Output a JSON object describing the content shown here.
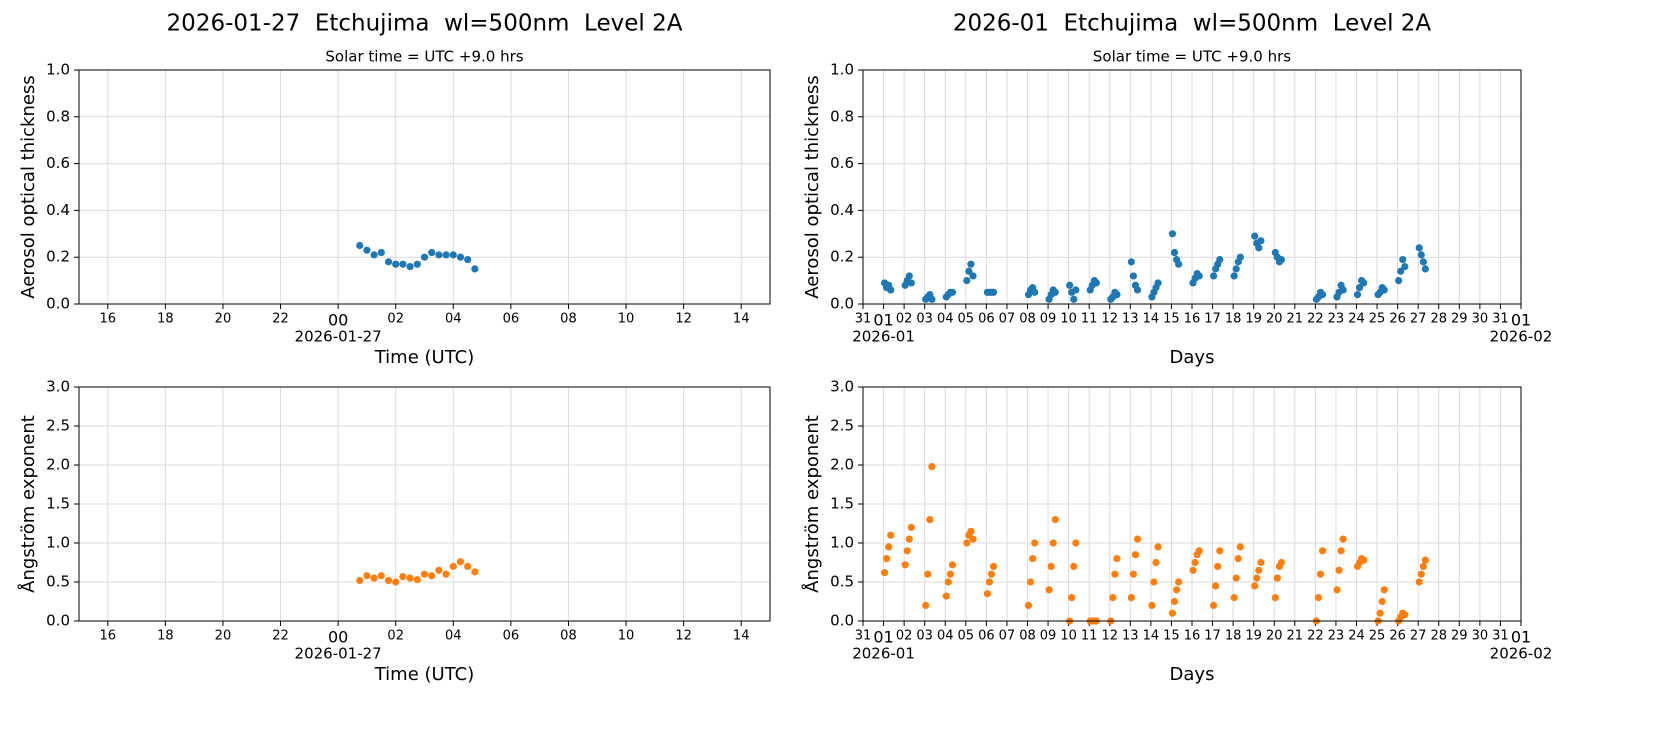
{
  "chart_data": [
    {
      "type": "scatter",
      "title": "2026-01-27  Etchujima  wl=500nm  Level 2A",
      "subtitle": "Solar time = UTC +9.0 hrs",
      "xlabel": "Time (UTC)",
      "ylabel": "Aerosol optical thickness",
      "color": "#1f77b4",
      "grid": true,
      "xlim": [
        -9,
        15
      ],
      "xticks": [
        {
          "value": -8,
          "label": "16"
        },
        {
          "value": -6,
          "label": "18"
        },
        {
          "value": -4,
          "label": "20"
        },
        {
          "value": -2,
          "label": "22"
        },
        {
          "value": 0,
          "label": "00"
        },
        {
          "value": 2,
          "label": "02"
        },
        {
          "value": 4,
          "label": "04"
        },
        {
          "value": 6,
          "label": "06"
        },
        {
          "value": 8,
          "label": "08"
        },
        10,
        12,
        14
      ],
      "x_date_labels": [
        {
          "value": 0,
          "label": "2026-01-27"
        }
      ],
      "ylim": [
        0,
        1
      ],
      "yticks": [
        {
          "value": 0,
          "label": "0.0"
        },
        0.2,
        0.4,
        0.6,
        0.8,
        {
          "value": 1,
          "label": "1.0"
        }
      ],
      "x": [
        0.75,
        1.0,
        1.25,
        1.5,
        1.75,
        2.0,
        2.25,
        2.5,
        2.75,
        3.0,
        3.25,
        3.5,
        3.75,
        4.0,
        4.25,
        4.5,
        4.75
      ],
      "values": [
        0.25,
        0.23,
        0.21,
        0.22,
        0.18,
        0.17,
        0.17,
        0.16,
        0.17,
        0.2,
        0.22,
        0.21,
        0.21,
        0.21,
        0.2,
        0.19,
        0.15
      ]
    },
    {
      "type": "scatter",
      "title": "2026-01  Etchujima  wl=500nm  Level 2A",
      "subtitle": "Solar time = UTC +9.0 hrs",
      "xlabel": "Days",
      "ylabel": "Aerosol optical thickness",
      "color": "#1f77b4",
      "grid": true,
      "xlim": [
        0,
        32
      ],
      "xticks": [
        {
          "value": 0,
          "label": "31"
        },
        {
          "value": 1,
          "label": "01"
        },
        {
          "value": 2,
          "label": "02"
        },
        {
          "value": 3,
          "label": "03"
        },
        {
          "value": 4,
          "label": "04"
        },
        {
          "value": 5,
          "label": "05"
        },
        {
          "value": 6,
          "label": "06"
        },
        {
          "value": 7,
          "label": "07"
        },
        {
          "value": 8,
          "label": "08"
        },
        {
          "value": 9,
          "label": "09"
        },
        10,
        11,
        12,
        13,
        14,
        15,
        16,
        17,
        18,
        19,
        20,
        21,
        22,
        23,
        24,
        25,
        26,
        27,
        28,
        29,
        30,
        31,
        {
          "value": 32,
          "label": "01"
        }
      ],
      "x_date_labels": [
        {
          "value": 1,
          "label": "2026-01"
        },
        {
          "value": 32,
          "label": "2026-02"
        }
      ],
      "ylim": [
        0,
        1
      ],
      "yticks": [
        {
          "value": 0,
          "label": "0.0"
        },
        0.2,
        0.4,
        0.6,
        0.8,
        {
          "value": 1,
          "label": "1.0"
        }
      ],
      "x": [
        1.05,
        1.15,
        1.25,
        1.35,
        2.05,
        2.15,
        2.25,
        2.35,
        3.05,
        3.15,
        3.25,
        3.35,
        4.05,
        4.15,
        4.25,
        4.35,
        5.05,
        5.15,
        5.25,
        5.35,
        6.05,
        6.15,
        6.25,
        6.35,
        8.05,
        8.15,
        8.25,
        8.35,
        9.05,
        9.15,
        9.25,
        9.35,
        10.05,
        10.15,
        10.25,
        10.35,
        11.05,
        11.15,
        11.25,
        11.35,
        12.05,
        12.15,
        12.25,
        12.35,
        13.05,
        13.15,
        13.25,
        13.35,
        14.05,
        14.15,
        14.25,
        14.35,
        15.05,
        15.15,
        15.25,
        15.35,
        16.05,
        16.15,
        16.25,
        16.35,
        17.05,
        17.15,
        17.25,
        17.35,
        18.05,
        18.15,
        18.25,
        18.35,
        19.05,
        19.15,
        19.25,
        19.35,
        20.05,
        20.15,
        20.25,
        20.35,
        22.05,
        22.15,
        22.25,
        22.35,
        23.05,
        23.15,
        23.25,
        23.35,
        24.05,
        24.15,
        24.25,
        24.35,
        25.05,
        25.15,
        25.25,
        25.35,
        26.05,
        26.15,
        26.25,
        26.35,
        27.05,
        27.15,
        27.25,
        27.35
      ],
      "values": [
        0.09,
        0.07,
        0.08,
        0.06,
        0.08,
        0.1,
        0.12,
        0.09,
        0.02,
        0.03,
        0.04,
        0.02,
        0.03,
        0.04,
        0.05,
        0.05,
        0.1,
        0.14,
        0.17,
        0.12,
        0.05,
        0.05,
        0.05,
        0.05,
        0.04,
        0.06,
        0.07,
        0.05,
        0.02,
        0.04,
        0.06,
        0.05,
        0.08,
        0.05,
        0.02,
        0.06,
        0.06,
        0.08,
        0.1,
        0.09,
        0.02,
        0.03,
        0.05,
        0.04,
        0.18,
        0.12,
        0.08,
        0.06,
        0.03,
        0.05,
        0.07,
        0.09,
        0.3,
        0.22,
        0.19,
        0.17,
        0.09,
        0.11,
        0.13,
        0.12,
        0.12,
        0.15,
        0.17,
        0.19,
        0.12,
        0.15,
        0.18,
        0.2,
        0.29,
        0.26,
        0.24,
        0.27,
        0.22,
        0.2,
        0.18,
        0.19,
        0.02,
        0.03,
        0.05,
        0.04,
        0.03,
        0.05,
        0.08,
        0.06,
        0.04,
        0.07,
        0.1,
        0.09,
        0.04,
        0.05,
        0.07,
        0.06,
        0.1,
        0.14,
        0.19,
        0.16,
        0.24,
        0.21,
        0.18,
        0.15
      ]
    },
    {
      "type": "scatter",
      "xlabel": "Time (UTC)",
      "ylabel": "Ångström exponent",
      "color": "#ff7f0e",
      "grid": true,
      "xlim": [
        -9,
        15
      ],
      "xticks": [
        {
          "value": -8,
          "label": "16"
        },
        {
          "value": -6,
          "label": "18"
        },
        {
          "value": -4,
          "label": "20"
        },
        {
          "value": -2,
          "label": "22"
        },
        {
          "value": 0,
          "label": "00"
        },
        {
          "value": 2,
          "label": "02"
        },
        {
          "value": 4,
          "label": "04"
        },
        {
          "value": 6,
          "label": "06"
        },
        {
          "value": 8,
          "label": "08"
        },
        10,
        12,
        14
      ],
      "x_date_labels": [
        {
          "value": 0,
          "label": "2026-01-27"
        }
      ],
      "ylim": [
        0,
        3
      ],
      "yticks": [
        {
          "value": 0,
          "label": "0.0"
        },
        0.5,
        {
          "value": 1,
          "label": "1.0"
        },
        1.5,
        {
          "value": 2,
          "label": "2.0"
        },
        2.5,
        {
          "value": 3,
          "label": "3.0"
        }
      ],
      "x": [
        0.75,
        1.0,
        1.25,
        1.5,
        1.75,
        2.0,
        2.25,
        2.5,
        2.75,
        3.0,
        3.25,
        3.5,
        3.75,
        4.0,
        4.25,
        4.5,
        4.75
      ],
      "values": [
        0.52,
        0.58,
        0.55,
        0.58,
        0.52,
        0.5,
        0.57,
        0.55,
        0.53,
        0.6,
        0.58,
        0.65,
        0.6,
        0.7,
        0.76,
        0.7,
        0.63
      ]
    },
    {
      "type": "scatter",
      "xlabel": "Days",
      "ylabel": "Ångström exponent",
      "color": "#ff7f0e",
      "grid": true,
      "xlim": [
        0,
        32
      ],
      "xticks": [
        {
          "value": 0,
          "label": "31"
        },
        {
          "value": 1,
          "label": "01"
        },
        {
          "value": 2,
          "label": "02"
        },
        {
          "value": 3,
          "label": "03"
        },
        {
          "value": 4,
          "label": "04"
        },
        {
          "value": 5,
          "label": "05"
        },
        {
          "value": 6,
          "label": "06"
        },
        {
          "value": 7,
          "label": "07"
        },
        {
          "value": 8,
          "label": "08"
        },
        {
          "value": 9,
          "label": "09"
        },
        10,
        11,
        12,
        13,
        14,
        15,
        16,
        17,
        18,
        19,
        20,
        21,
        22,
        23,
        24,
        25,
        26,
        27,
        28,
        29,
        30,
        31,
        {
          "value": 32,
          "label": "01"
        }
      ],
      "x_date_labels": [
        {
          "value": 1,
          "label": "2026-01"
        },
        {
          "value": 32,
          "label": "2026-02"
        }
      ],
      "ylim": [
        0,
        3
      ],
      "yticks": [
        {
          "value": 0,
          "label": "0.0"
        },
        0.5,
        {
          "value": 1,
          "label": "1.0"
        },
        1.5,
        {
          "value": 2,
          "label": "2.0"
        },
        2.5,
        {
          "value": 3,
          "label": "3.0"
        }
      ],
      "x": [
        1.05,
        1.15,
        1.25,
        1.35,
        2.05,
        2.15,
        2.25,
        2.35,
        3.05,
        3.15,
        3.25,
        3.35,
        4.05,
        4.15,
        4.25,
        4.35,
        5.05,
        5.15,
        5.25,
        5.35,
        6.05,
        6.15,
        6.25,
        6.35,
        8.05,
        8.15,
        8.25,
        8.35,
        9.05,
        9.15,
        9.25,
        9.35,
        10.05,
        10.15,
        10.25,
        10.35,
        11.05,
        11.15,
        11.25,
        11.35,
        12.05,
        12.15,
        12.25,
        12.35,
        13.05,
        13.15,
        13.25,
        13.35,
        14.05,
        14.15,
        14.25,
        14.35,
        15.05,
        15.15,
        15.25,
        15.35,
        16.05,
        16.15,
        16.25,
        16.35,
        17.05,
        17.15,
        17.25,
        17.35,
        18.05,
        18.15,
        18.25,
        18.35,
        19.05,
        19.15,
        19.25,
        19.35,
        20.05,
        20.15,
        20.25,
        20.35,
        22.05,
        22.15,
        22.25,
        22.35,
        23.05,
        23.15,
        23.25,
        23.35,
        24.05,
        24.15,
        24.25,
        24.35,
        25.05,
        25.15,
        25.25,
        25.35,
        26.05,
        26.15,
        26.25,
        26.35,
        27.05,
        27.15,
        27.25,
        27.35
      ],
      "values": [
        0.62,
        0.8,
        0.95,
        1.1,
        0.72,
        0.9,
        1.05,
        1.2,
        0.2,
        0.6,
        1.3,
        1.98,
        0.32,
        0.5,
        0.6,
        0.72,
        1.0,
        1.1,
        1.15,
        1.05,
        0.35,
        0.5,
        0.6,
        0.7,
        0.2,
        0.5,
        0.8,
        1.0,
        0.4,
        0.7,
        1.0,
        1.3,
        0,
        0.3,
        0.7,
        1.0,
        0,
        0,
        0,
        0,
        0,
        0.3,
        0.6,
        0.8,
        0.3,
        0.6,
        0.85,
        1.05,
        0.2,
        0.5,
        0.75,
        0.95,
        0.1,
        0.25,
        0.4,
        0.5,
        0.65,
        0.75,
        0.85,
        0.9,
        0.2,
        0.45,
        0.7,
        0.9,
        0.3,
        0.55,
        0.8,
        0.95,
        0.45,
        0.55,
        0.65,
        0.75,
        0.3,
        0.55,
        0.7,
        0.75,
        0,
        0.3,
        0.6,
        0.9,
        0.4,
        0.65,
        0.9,
        1.05,
        0.7,
        0.75,
        0.8,
        0.78,
        0,
        0.1,
        0.25,
        0.4,
        0,
        0.05,
        0.1,
        0.08,
        0.5,
        0.6,
        0.7,
        0.78
      ]
    }
  ]
}
